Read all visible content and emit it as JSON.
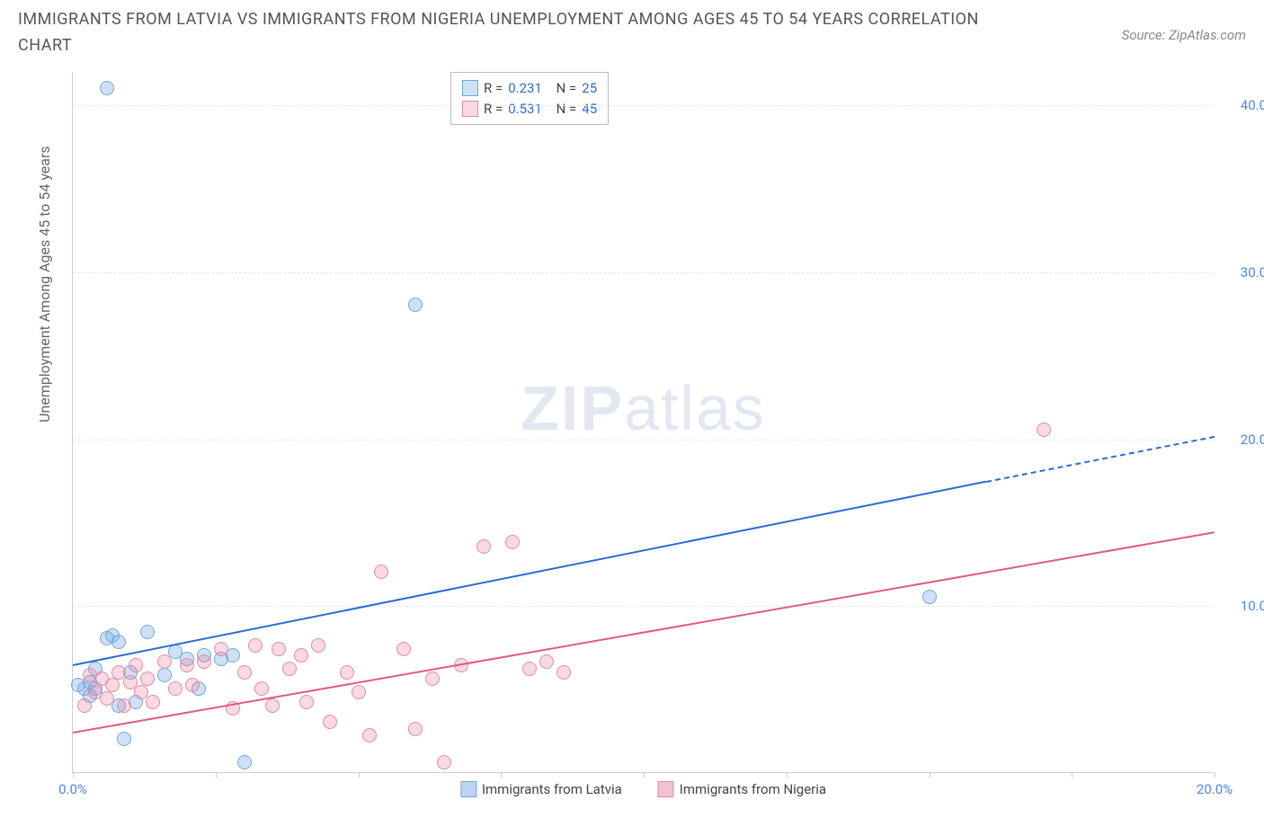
{
  "title": "IMMIGRANTS FROM LATVIA VS IMMIGRANTS FROM NIGERIA UNEMPLOYMENT AMONG AGES 45 TO 54 YEARS CORRELATION CHART",
  "source": "Source: ZipAtlas.com",
  "ylabel": "Unemployment Among Ages 45 to 54 years",
  "watermark_a": "ZIP",
  "watermark_b": "atlas",
  "chart": {
    "type": "scatter",
    "xlim": [
      0,
      20
    ],
    "ylim": [
      0,
      42
    ],
    "xticks": [
      0,
      2.5,
      5,
      7.5,
      10,
      12.5,
      15,
      17.5,
      20
    ],
    "xtick_labels": {
      "0": "0.0%",
      "20": "20.0%"
    },
    "yticks": [
      10,
      20,
      30,
      40
    ],
    "ytick_labels": {
      "10": "10.0%",
      "20": "20.0%",
      "30": "30.0%",
      "40": "40.0%"
    },
    "grid_color": "#e5e5e5",
    "axis_color": "#cccccc",
    "tick_label_color": "#4a86e8",
    "background_color": "#ffffff",
    "series": [
      {
        "name": "Immigrants from Latvia",
        "fill": "rgba(120,170,230,0.35)",
        "stroke": "#6fa8dc",
        "line_color": "#2b6cd4",
        "marker_r": 8,
        "R": "0.231",
        "N": "25",
        "trend": {
          "x0": 0,
          "y0": 6.5,
          "x1": 16,
          "y1": 17.5,
          "dash_to_x": 20,
          "dash_to_y": 20.2
        },
        "points": [
          [
            0.6,
            41.0
          ],
          [
            6.0,
            28.0
          ],
          [
            15.0,
            10.5
          ],
          [
            0.1,
            5.2
          ],
          [
            0.2,
            5.0
          ],
          [
            0.3,
            5.4
          ],
          [
            0.3,
            4.6
          ],
          [
            0.4,
            6.2
          ],
          [
            0.4,
            5.0
          ],
          [
            0.6,
            8.0
          ],
          [
            0.7,
            8.2
          ],
          [
            0.8,
            7.8
          ],
          [
            0.8,
            4.0
          ],
          [
            0.9,
            2.0
          ],
          [
            1.0,
            6.0
          ],
          [
            1.1,
            4.2
          ],
          [
            1.3,
            8.4
          ],
          [
            1.6,
            5.8
          ],
          [
            1.8,
            7.2
          ],
          [
            2.0,
            6.8
          ],
          [
            2.2,
            5.0
          ],
          [
            2.3,
            7.0
          ],
          [
            2.6,
            6.8
          ],
          [
            3.0,
            0.6
          ],
          [
            2.8,
            7.0
          ]
        ]
      },
      {
        "name": "Immigrants from Nigeria",
        "fill": "rgba(235,130,160,0.30)",
        "stroke": "#e38aa4",
        "line_color": "#e05a84",
        "marker_r": 8,
        "R": "0.531",
        "N": "45",
        "trend": {
          "x0": 0,
          "y0": 2.5,
          "x1": 20,
          "y1": 14.5
        },
        "points": [
          [
            17.0,
            20.5
          ],
          [
            0.2,
            4.0
          ],
          [
            0.3,
            5.8
          ],
          [
            0.4,
            4.8
          ],
          [
            0.5,
            5.6
          ],
          [
            0.6,
            4.4
          ],
          [
            0.7,
            5.2
          ],
          [
            0.8,
            6.0
          ],
          [
            0.9,
            4.0
          ],
          [
            1.0,
            5.4
          ],
          [
            1.1,
            6.4
          ],
          [
            1.2,
            4.8
          ],
          [
            1.3,
            5.6
          ],
          [
            1.4,
            4.2
          ],
          [
            1.6,
            6.6
          ],
          [
            1.8,
            5.0
          ],
          [
            2.0,
            6.4
          ],
          [
            2.1,
            5.2
          ],
          [
            2.3,
            6.6
          ],
          [
            2.6,
            7.4
          ],
          [
            2.8,
            3.8
          ],
          [
            3.0,
            6.0
          ],
          [
            3.2,
            7.6
          ],
          [
            3.3,
            5.0
          ],
          [
            3.5,
            4.0
          ],
          [
            3.6,
            7.4
          ],
          [
            3.8,
            6.2
          ],
          [
            4.0,
            7.0
          ],
          [
            4.1,
            4.2
          ],
          [
            4.3,
            7.6
          ],
          [
            4.5,
            3.0
          ],
          [
            4.8,
            6.0
          ],
          [
            5.0,
            4.8
          ],
          [
            5.2,
            2.2
          ],
          [
            5.4,
            12.0
          ],
          [
            5.8,
            7.4
          ],
          [
            6.0,
            2.6
          ],
          [
            6.3,
            5.6
          ],
          [
            6.5,
            0.6
          ],
          [
            6.8,
            6.4
          ],
          [
            7.2,
            13.5
          ],
          [
            7.7,
            13.8
          ],
          [
            8.0,
            6.2
          ],
          [
            8.3,
            6.6
          ],
          [
            8.6,
            6.0
          ]
        ]
      }
    ]
  },
  "legend_box": {
    "r_label": "R =",
    "n_label": "N ="
  },
  "legend_bottom": [
    {
      "label": "Immigrants from Latvia",
      "fill": "rgba(120,170,230,0.5)",
      "stroke": "#6fa8dc"
    },
    {
      "label": "Immigrants from Nigeria",
      "fill": "rgba(235,130,160,0.5)",
      "stroke": "#e38aa4"
    }
  ]
}
